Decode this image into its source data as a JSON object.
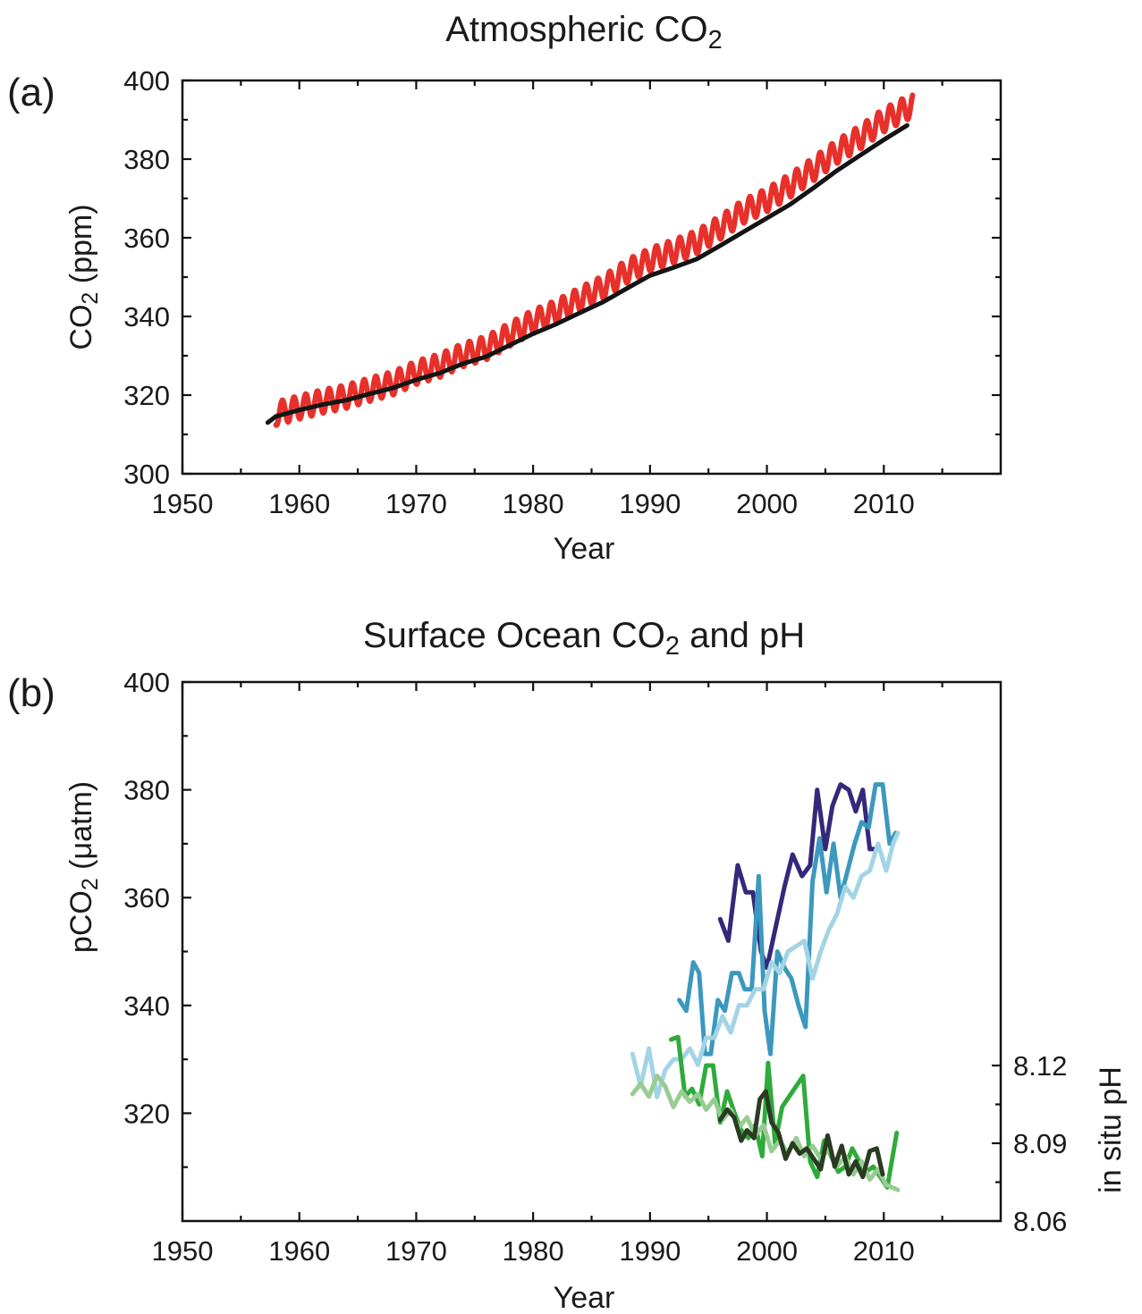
{
  "chart_data": [
    {
      "panel_label": "(a)",
      "type": "line",
      "title": "Atmospheric CO",
      "title_subscript": "2",
      "xlabel": "Year",
      "ylabel": "CO",
      "ylabel_subscript": "2",
      "ylabel_suffix": " (ppm)",
      "xlim": [
        1950,
        2020
      ],
      "ylim": [
        300,
        400
      ],
      "xticks": [
        1950,
        1960,
        1970,
        1980,
        1990,
        2000,
        2010
      ],
      "yticks": [
        300,
        320,
        340,
        360,
        380,
        400
      ],
      "series": [
        {
          "color": "#e8302a",
          "seasonal_amplitude": 3,
          "x": [
            1958,
            1960,
            1962,
            1964,
            1966,
            1968,
            1970,
            1972,
            1974,
            1976,
            1978,
            1980,
            1982,
            1984,
            1986,
            1988,
            1990,
            1992,
            1994,
            1996,
            1998,
            2000,
            2002,
            2004,
            2006,
            2008,
            2010,
            2012.5
          ],
          "y": [
            315.3,
            316.9,
            318.4,
            319.6,
            321.4,
            323.0,
            325.7,
            327.5,
            330.2,
            332.0,
            335.4,
            338.7,
            341.2,
            344.4,
            347.4,
            351.4,
            354.4,
            356.5,
            358.9,
            362.6,
            366.7,
            369.6,
            373.3,
            377.5,
            381.9,
            385.6,
            389.9,
            393.8
          ]
        },
        {
          "color": "#141414",
          "x": [
            1957.3,
            1958,
            1960,
            1962,
            1964,
            1966,
            1968,
            1970,
            1972,
            1974,
            1976,
            1978,
            1980,
            1982,
            1984,
            1986,
            1988,
            1990,
            1992,
            1994,
            1996,
            1998,
            2000,
            2002,
            2004,
            2006,
            2008,
            2010,
            2012
          ],
          "y": [
            313.0,
            314.6,
            316.2,
            317.6,
            318.7,
            320.3,
            321.8,
            323.9,
            325.6,
            328.0,
            329.8,
            332.7,
            335.6,
            338.1,
            340.9,
            343.7,
            347.1,
            350.4,
            352.4,
            354.6,
            358.0,
            361.5,
            365.0,
            368.5,
            372.7,
            377.1,
            381.0,
            384.9,
            388.6
          ]
        }
      ]
    },
    {
      "panel_label": "(b)",
      "type": "line",
      "title": "Surface Ocean CO",
      "title_subscript": "2",
      "title_suffix": " and pH",
      "xlabel": "Year",
      "ylabel": "pCO",
      "ylabel_subscript": "2",
      "ylabel_suffix": " (μatm)",
      "ylabel_right": "in situ pH",
      "xlim": [
        1950,
        2020
      ],
      "ylim": [
        300,
        400
      ],
      "xticks": [
        1950,
        1960,
        1970,
        1980,
        1990,
        2000,
        2010
      ],
      "yticks": [
        320,
        340,
        360,
        380,
        400
      ],
      "ylim_right": [
        8.06,
        8.2
      ],
      "yticks_right": [
        8.06,
        8.09,
        8.12
      ],
      "series": [
        {
          "axis": "left",
          "color": "#35287a",
          "x": [
            1996.0,
            1996.7,
            1997.5,
            1998.2,
            1998.8,
            1999.5,
            2000.0,
            2000.8,
            2001.5,
            2002.2,
            2003.0,
            2003.7,
            2004.3,
            2005.0,
            2005.6,
            2006.3,
            2007.0,
            2007.6,
            2008.2,
            2008.8,
            2009.4
          ],
          "y": [
            356,
            352,
            366,
            361,
            361,
            350,
            347,
            355,
            362,
            368,
            364,
            366,
            380,
            369,
            377,
            381,
            380,
            376,
            380,
            369,
            369
          ]
        },
        {
          "axis": "left",
          "color": "#3c98bd",
          "x": [
            1992.5,
            1993.1,
            1993.7,
            1994.2,
            1994.7,
            1995.2,
            1995.8,
            1996.4,
            1997.0,
            1997.6,
            1998.1,
            1998.7,
            1999.3,
            1999.8,
            2000.3,
            2000.9,
            2001.5,
            2002.1,
            2002.7,
            2003.3,
            2003.9,
            2004.5,
            2005.1,
            2005.7,
            2006.3,
            2006.9,
            2007.5,
            2008.1,
            2008.7,
            2009.3,
            2009.9,
            2010.5,
            2011.0
          ],
          "y": [
            341,
            339,
            348,
            346,
            331,
            331,
            341,
            339,
            346,
            346,
            343,
            343,
            364,
            339,
            331,
            350,
            347,
            345,
            340,
            336,
            363,
            371,
            361,
            370,
            360,
            365,
            370,
            374,
            373,
            381,
            381,
            370,
            372
          ]
        },
        {
          "axis": "left",
          "color": "#a3d4e6",
          "x": [
            1988.5,
            1989.2,
            1989.9,
            1990.6,
            1991.3,
            1992.0,
            1992.7,
            1993.4,
            1994.1,
            1994.8,
            1995.5,
            1996.2,
            1996.9,
            1997.6,
            1998.3,
            1999.0,
            1999.7,
            2000.4,
            2001.1,
            2001.8,
            2002.5,
            2003.2,
            2003.9,
            2004.6,
            2005.3,
            2006.0,
            2006.7,
            2007.4,
            2008.1,
            2008.8,
            2009.5,
            2010.2,
            2010.8,
            2011.2
          ],
          "y": [
            331,
            325,
            332,
            323,
            328,
            330,
            330,
            332,
            329,
            334,
            334,
            338,
            335,
            340,
            340,
            343,
            343,
            348,
            346,
            350,
            351,
            352,
            345,
            350,
            354,
            357,
            362,
            360,
            364,
            365,
            370,
            365,
            370,
            372
          ]
        },
        {
          "axis": "right",
          "color": "#2fab3c",
          "x": [
            1991.8,
            1992.4,
            1993.0,
            1993.6,
            1994.2,
            1994.8,
            1995.4,
            1996.0,
            1996.6,
            1997.2,
            1997.8,
            1998.4,
            1999.0,
            1999.6,
            2000.1,
            2000.7,
            2001.3,
            2001.9,
            2002.5,
            2003.1,
            2003.7,
            2004.3,
            2004.9,
            2005.5,
            2006.1,
            2006.7,
            2007.3,
            2007.9,
            2008.5,
            2009.1,
            2009.7,
            2010.3,
            2011.1
          ],
          "y": [
            8.13,
            8.131,
            8.108,
            8.111,
            8.105,
            8.12,
            8.12,
            8.098,
            8.11,
            8.102,
            8.095,
            8.092,
            8.097,
            8.085,
            8.121,
            8.09,
            8.104,
            8.108,
            8.112,
            8.116,
            8.083,
            8.077,
            8.091,
            8.085,
            8.079,
            8.081,
            8.088,
            8.083,
            8.079,
            8.081,
            8.077,
            8.073,
            8.094
          ]
        },
        {
          "axis": "right",
          "color": "#98cc92",
          "x": [
            1988.5,
            1989.2,
            1989.9,
            1990.6,
            1991.3,
            1992.0,
            1992.7,
            1993.4,
            1994.1,
            1994.8,
            1995.5,
            1996.2,
            1996.9,
            1997.6,
            1998.3,
            1999.0,
            1999.7,
            2000.4,
            2001.1,
            2001.8,
            2002.5,
            2003.2,
            2003.9,
            2004.6,
            2005.3,
            2006.0,
            2006.7,
            2007.4,
            2008.1,
            2008.8,
            2009.5,
            2010.2,
            2011.2
          ],
          "y": [
            8.109,
            8.113,
            8.108,
            8.116,
            8.112,
            8.104,
            8.11,
            8.106,
            8.109,
            8.103,
            8.107,
            8.099,
            8.103,
            8.096,
            8.1,
            8.093,
            8.097,
            8.087,
            8.091,
            8.086,
            8.092,
            8.085,
            8.089,
            8.084,
            8.088,
            8.081,
            8.085,
            8.078,
            8.083,
            8.076,
            8.08,
            8.074,
            8.072
          ]
        },
        {
          "axis": "right",
          "color": "#2a3b22",
          "x": [
            1996.0,
            1996.6,
            1997.2,
            1997.8,
            1998.3,
            1998.9,
            1999.4,
            1999.9,
            2000.4,
            2001.0,
            2001.6,
            2002.2,
            2002.8,
            2003.4,
            2004.0,
            2004.6,
            2005.2,
            2005.8,
            2006.4,
            2007.0,
            2007.6,
            2008.2,
            2008.8,
            2009.4,
            2009.9
          ],
          "y": [
            8.099,
            8.103,
            8.1,
            8.091,
            8.095,
            8.092,
            8.107,
            8.11,
            8.098,
            8.094,
            8.084,
            8.09,
            8.086,
            8.088,
            8.084,
            8.08,
            8.093,
            8.081,
            8.089,
            8.078,
            8.083,
            8.077,
            8.087,
            8.088,
            8.078
          ]
        }
      ]
    }
  ]
}
